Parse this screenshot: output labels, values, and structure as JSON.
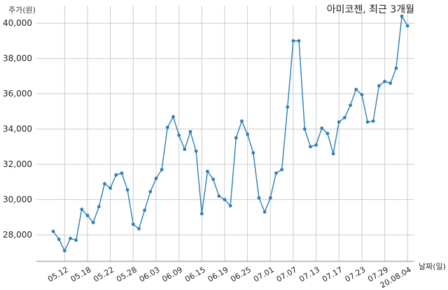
{
  "chart_data": {
    "type": "line",
    "title": "아미코젠, 최근 3개월",
    "ylabel": "주가(원)",
    "xlabel": "날짜(일)",
    "ylim": [
      26500,
      41000
    ],
    "yticks": [
      28000,
      30000,
      32000,
      34000,
      36000,
      38000,
      40000
    ],
    "ytick_labels": [
      "28,000",
      "30,000",
      "32,000",
      "34,000",
      "36,000",
      "38,000",
      "40,000"
    ],
    "x_tick_labels": [
      "05.12",
      "05.18",
      "05.22",
      "05.28",
      "06.03",
      "06.09",
      "06.15",
      "06.19",
      "06.25",
      "07.01",
      "07.07",
      "07.13",
      "07.17",
      "07.23",
      "07.29",
      "20.08.04"
    ],
    "x_tick_index": [
      2,
      6,
      10,
      14,
      18,
      22,
      26,
      30,
      34,
      38,
      42,
      46,
      50,
      54,
      58,
      62
    ],
    "grid": true,
    "color": "#2e7fb8",
    "values": [
      28200,
      27750,
      27100,
      27800,
      27700,
      29450,
      29100,
      28700,
      29600,
      30900,
      30650,
      31400,
      31500,
      30550,
      28600,
      28350,
      29400,
      30450,
      31200,
      31700,
      34100,
      34700,
      33650,
      32850,
      33850,
      32750,
      29200,
      31600,
      31150,
      30200,
      30000,
      29650,
      33500,
      34450,
      33700,
      32650,
      30100,
      29300,
      30100,
      31500,
      31700,
      35250,
      39000,
      39000,
      34000,
      33000,
      33100,
      34050,
      33750,
      32600,
      34400,
      34650,
      35350,
      36250,
      35950,
      34400,
      34450,
      36450,
      36700,
      36600,
      37450,
      40400,
      39850
    ]
  }
}
